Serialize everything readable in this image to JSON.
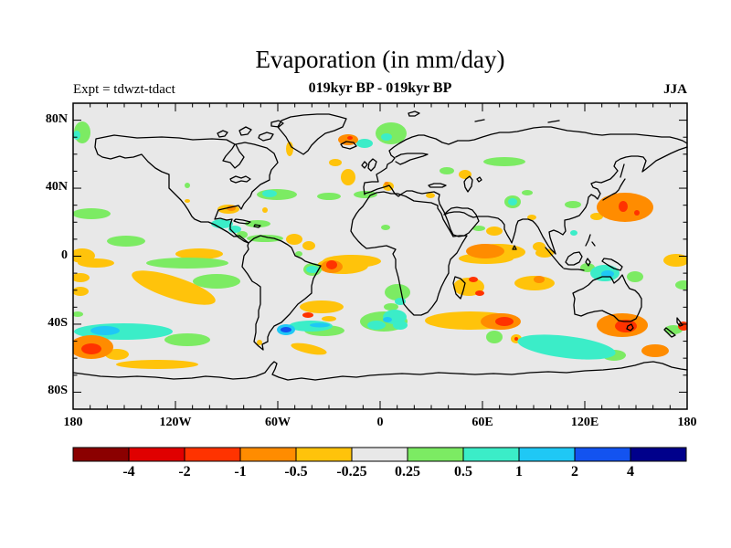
{
  "header": {
    "title": "Evaporation (in mm/day)",
    "subtitle": "019kyr BP - 019kyr BP",
    "experiment_label": "Expt = tdwzt-tdact",
    "season": "JJA"
  },
  "axis": {
    "lon": {
      "min": -180,
      "max": 180,
      "minor_step": 10,
      "major": [
        {
          "value": -180,
          "label": "180"
        },
        {
          "value": -120,
          "label": "120W"
        },
        {
          "value": -60,
          "label": "60W"
        },
        {
          "value": 0,
          "label": "0"
        },
        {
          "value": 60,
          "label": "60E"
        },
        {
          "value": 120,
          "label": "120E"
        },
        {
          "value": 180,
          "label": "180"
        }
      ]
    },
    "lat": {
      "min": -90,
      "max": 90,
      "minor_step": 10,
      "major": [
        {
          "value": 80,
          "label": "80N"
        },
        {
          "value": 40,
          "label": "40N"
        },
        {
          "value": 0,
          "label": "0"
        },
        {
          "value": -40,
          "label": "40S"
        },
        {
          "value": -80,
          "label": "80S"
        }
      ]
    }
  },
  "colorbar": {
    "boundary_labels": [
      "-4",
      "-2",
      "-1",
      "-0.5",
      "-0.25",
      "0.25",
      "0.5",
      "1",
      "2",
      "4"
    ],
    "segment_colors": [
      "#8B0000",
      "#E00000",
      "#FF3300",
      "#FF8C00",
      "#FFC30B",
      "#E8E8E8",
      "#7CEB63",
      "#3BEDC8",
      "#1FC8F5",
      "#1353F0",
      "#00008B"
    ]
  },
  "map": {
    "background": "#E8E8E8",
    "coastline_color": "#000000",
    "frame_color": "#000000"
  },
  "chart_data": {
    "type": "heatmap",
    "subtype": "filled-contour-world-map",
    "title": "Evaporation (in mm/day)",
    "subtitle": "019kyr BP - 019kyr BP",
    "experiment": "tdwzt-tdact",
    "season": "JJA",
    "units": "mm/day",
    "projection": "cylindrical equidistant",
    "lon_range": [
      -180,
      180
    ],
    "lat_range": [
      -90,
      90
    ],
    "contour_levels": [
      -4,
      -2,
      -1,
      -0.5,
      -0.25,
      0.25,
      0.5,
      1,
      2,
      4
    ],
    "palette": [
      "#8B0000",
      "#E00000",
      "#FF3300",
      "#FF8C00",
      "#FFC30B",
      "#E8E8E8",
      "#7CEB63",
      "#3BEDC8",
      "#1FC8F5",
      "#1353F0",
      "#00008B"
    ],
    "background_band": "-0.25 to 0.25 (light gray, most of globe)",
    "anomaly_regions": [
      {
        "region": "North Atlantic near Iceland",
        "value_mm_day": "-1 to -0.5 with small +0.5 to 1 patch east"
      },
      {
        "region": "Barents Sea north of Scandinavia",
        "value_mm_day": "+0.25 to 1"
      },
      {
        "region": "Subtropical North Atlantic ~30N",
        "value_mm_day": "+0.25 to 1"
      },
      {
        "region": "Gulf of Mexico",
        "value_mm_day": "-0.5 to -0.25"
      },
      {
        "region": "Central America / Caribbean",
        "value_mm_day": "+0.5 to 2"
      },
      {
        "region": "Northeast Pacific 10-20N",
        "value_mm_day": "+0.25 to 0.5 bands"
      },
      {
        "region": "Western Pacific east of Japan",
        "value_mm_day": "-1 to -0.5"
      },
      {
        "region": "Siberia",
        "value_mm_day": "+0.25 to 0.5 bands"
      },
      {
        "region": "Arabian Sea and south India",
        "value_mm_day": "-1 to -0.25"
      },
      {
        "region": "Equatorial eastern Pacific",
        "value_mm_day": "-0.5 to -0.25 streaks with +0.25 to 0.5 streaks"
      },
      {
        "region": "Equatorial Atlantic off Brazil",
        "value_mm_day": "-2 to -0.25 blob, +0.5 to 1 patch beside it"
      },
      {
        "region": "Equatorial Indian Ocean",
        "value_mm_day": "-0.5 to -0.25"
      },
      {
        "region": "Madagascar region",
        "value_mm_day": "-2 to -0.25 spots"
      },
      {
        "region": "South Pacific ~40S",
        "value_mm_day": "+0.5 to 2 band"
      },
      {
        "region": "Southern Ocean near 180/55S",
        "value_mm_day": "-4 to -0.5 blob"
      },
      {
        "region": "Southwest Atlantic east of Argentina",
        "value_mm_day": "-2 to -0.25 patches, +1 to 4 spot, +0.5 to 1 band"
      },
      {
        "region": "South Indian Ocean ~40S",
        "value_mm_day": "-2 to -0.25 band"
      },
      {
        "region": "Timor Sea north of Australia",
        "value_mm_day": "+0.5 to 2"
      },
      {
        "region": "Southeast Australia / Tasman Sea",
        "value_mm_day": "-2 to -0.5"
      },
      {
        "region": "South of Australia ~55S",
        "value_mm_day": "+0.5 to 1 band"
      },
      {
        "region": "New Zealand vicinity",
        "value_mm_day": "+0.25 to 0.5 and -2 to -1 east"
      },
      {
        "region": "Antarctic coastal Pacific sector",
        "value_mm_day": "-0.5 to -0.25 streaks"
      }
    ]
  }
}
